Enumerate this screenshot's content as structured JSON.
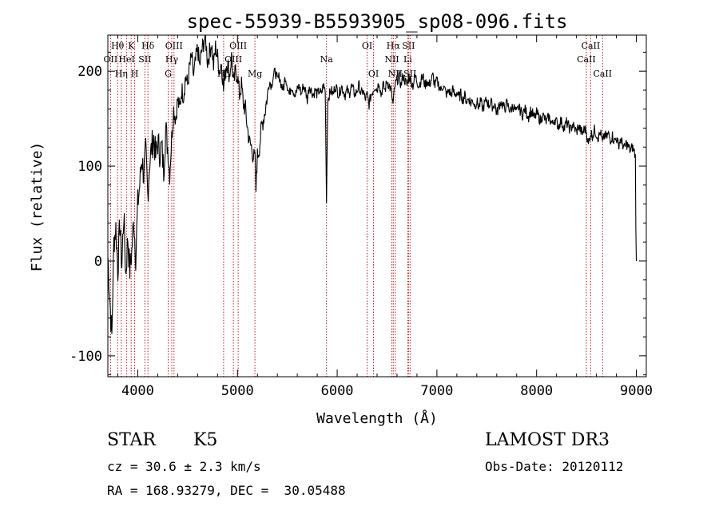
{
  "chart_data": {
    "type": "line",
    "title": "spec-55939-B5593905_sp08-096.fits",
    "xlabel": "Wavelength (Å)",
    "ylabel": "Flux (relative)",
    "xlim": [
      3700,
      9100
    ],
    "ylim": [
      -122,
      238
    ],
    "xticks": [
      4000,
      5000,
      6000,
      7000,
      8000,
      9000
    ],
    "yticks": [
      -100,
      0,
      100,
      200
    ],
    "line_color": "#000000",
    "marker_color": "#b22222",
    "spectrum": [
      [
        3700,
        5
      ],
      [
        3720,
        -40
      ],
      [
        3740,
        -80
      ],
      [
        3760,
        20
      ],
      [
        3780,
        35
      ],
      [
        3800,
        -10
      ],
      [
        3820,
        40
      ],
      [
        3840,
        -5
      ],
      [
        3860,
        50
      ],
      [
        3880,
        -15
      ],
      [
        3900,
        25
      ],
      [
        3920,
        -10
      ],
      [
        3940,
        10
      ],
      [
        3960,
        45
      ],
      [
        3980,
        5
      ],
      [
        4000,
        60
      ],
      [
        4020,
        80
      ],
      [
        4040,
        110
      ],
      [
        4060,
        90
      ],
      [
        4080,
        115
      ],
      [
        4100,
        70
      ],
      [
        4120,
        105
      ],
      [
        4140,
        120
      ],
      [
        4160,
        130
      ],
      [
        4180,
        110
      ],
      [
        4200,
        125
      ],
      [
        4220,
        115
      ],
      [
        4240,
        120
      ],
      [
        4260,
        95
      ],
      [
        4280,
        140
      ],
      [
        4300,
        120
      ],
      [
        4320,
        90
      ],
      [
        4340,
        130
      ],
      [
        4360,
        160
      ],
      [
        4380,
        150
      ],
      [
        4400,
        170
      ],
      [
        4420,
        160
      ],
      [
        4440,
        180
      ],
      [
        4460,
        175
      ],
      [
        4480,
        195
      ],
      [
        4500,
        185
      ],
      [
        4520,
        205
      ],
      [
        4540,
        215
      ],
      [
        4560,
        195
      ],
      [
        4580,
        210
      ],
      [
        4600,
        225
      ],
      [
        4620,
        205
      ],
      [
        4640,
        220
      ],
      [
        4660,
        230
      ],
      [
        4680,
        235
      ],
      [
        4700,
        210
      ],
      [
        4720,
        220
      ],
      [
        4740,
        230
      ],
      [
        4760,
        205
      ],
      [
        4780,
        225
      ],
      [
        4800,
        215
      ],
      [
        4820,
        200
      ],
      [
        4840,
        210
      ],
      [
        4860,
        180
      ],
      [
        4880,
        205
      ],
      [
        4900,
        210
      ],
      [
        4920,
        195
      ],
      [
        4940,
        215
      ],
      [
        4960,
        185
      ],
      [
        4980,
        200
      ],
      [
        5000,
        195
      ],
      [
        5020,
        175
      ],
      [
        5040,
        185
      ],
      [
        5060,
        165
      ],
      [
        5080,
        160
      ],
      [
        5100,
        140
      ],
      [
        5120,
        125
      ],
      [
        5140,
        120
      ],
      [
        5160,
        110
      ],
      [
        5180,
        105
      ],
      [
        5185,
        65
      ],
      [
        5190,
        95
      ],
      [
        5200,
        110
      ],
      [
        5220,
        120
      ],
      [
        5240,
        140
      ],
      [
        5260,
        150
      ],
      [
        5280,
        160
      ],
      [
        5300,
        175
      ],
      [
        5320,
        190
      ],
      [
        5340,
        185
      ],
      [
        5360,
        195
      ],
      [
        5380,
        200
      ],
      [
        5400,
        190
      ],
      [
        5420,
        195
      ],
      [
        5440,
        185
      ],
      [
        5460,
        180
      ],
      [
        5480,
        195
      ],
      [
        5500,
        185
      ],
      [
        5520,
        175
      ],
      [
        5540,
        185
      ],
      [
        5560,
        180
      ],
      [
        5580,
        175
      ],
      [
        5600,
        180
      ],
      [
        5620,
        185
      ],
      [
        5640,
        175
      ],
      [
        5660,
        185
      ],
      [
        5680,
        180
      ],
      [
        5700,
        170
      ],
      [
        5720,
        185
      ],
      [
        5740,
        180
      ],
      [
        5760,
        175
      ],
      [
        5780,
        180
      ],
      [
        5800,
        175
      ],
      [
        5820,
        180
      ],
      [
        5840,
        175
      ],
      [
        5860,
        185
      ],
      [
        5880,
        180
      ],
      [
        5888,
        110
      ],
      [
        5893,
        62
      ],
      [
        5898,
        105
      ],
      [
        5905,
        170
      ],
      [
        5920,
        175
      ],
      [
        5940,
        180
      ],
      [
        5960,
        175
      ],
      [
        5980,
        185
      ],
      [
        6000,
        180
      ],
      [
        6020,
        175
      ],
      [
        6040,
        185
      ],
      [
        6060,
        180
      ],
      [
        6080,
        175
      ],
      [
        6100,
        180
      ],
      [
        6120,
        175
      ],
      [
        6140,
        185
      ],
      [
        6160,
        180
      ],
      [
        6180,
        175
      ],
      [
        6200,
        180
      ],
      [
        6220,
        185
      ],
      [
        6240,
        175
      ],
      [
        6260,
        180
      ],
      [
        6280,
        170
      ],
      [
        6300,
        175
      ],
      [
        6320,
        165
      ],
      [
        6340,
        175
      ],
      [
        6360,
        180
      ],
      [
        6380,
        185
      ],
      [
        6400,
        180
      ],
      [
        6420,
        190
      ],
      [
        6440,
        175
      ],
      [
        6460,
        185
      ],
      [
        6480,
        180
      ],
      [
        6500,
        190
      ],
      [
        6520,
        185
      ],
      [
        6540,
        180
      ],
      [
        6560,
        165
      ],
      [
        6580,
        185
      ],
      [
        6600,
        190
      ],
      [
        6620,
        195
      ],
      [
        6640,
        185
      ],
      [
        6660,
        195
      ],
      [
        6680,
        190
      ],
      [
        6700,
        185
      ],
      [
        6720,
        195
      ],
      [
        6740,
        190
      ],
      [
        6760,
        185
      ],
      [
        6780,
        195
      ],
      [
        6800,
        190
      ],
      [
        6820,
        185
      ],
      [
        6840,
        190
      ],
      [
        6860,
        195
      ],
      [
        6880,
        185
      ],
      [
        6900,
        190
      ],
      [
        6920,
        185
      ],
      [
        6940,
        190
      ],
      [
        6960,
        195
      ],
      [
        6980,
        185
      ],
      [
        7000,
        190
      ],
      [
        7020,
        185
      ],
      [
        7040,
        180
      ],
      [
        7060,
        185
      ],
      [
        7080,
        180
      ],
      [
        7100,
        175
      ],
      [
        7120,
        180
      ],
      [
        7140,
        175
      ],
      [
        7160,
        180
      ],
      [
        7180,
        175
      ],
      [
        7200,
        178
      ],
      [
        7220,
        172
      ],
      [
        7240,
        176
      ],
      [
        7260,
        170
      ],
      [
        7280,
        174
      ],
      [
        7300,
        168
      ],
      [
        7320,
        172
      ],
      [
        7340,
        166
      ],
      [
        7360,
        170
      ],
      [
        7380,
        164
      ],
      [
        7400,
        168
      ],
      [
        7420,
        162
      ],
      [
        7440,
        168
      ],
      [
        7460,
        160
      ],
      [
        7480,
        166
      ],
      [
        7500,
        170
      ],
      [
        7520,
        164
      ],
      [
        7540,
        168
      ],
      [
        7560,
        162
      ],
      [
        7580,
        166
      ],
      [
        7600,
        155
      ],
      [
        7620,
        162
      ],
      [
        7640,
        168
      ],
      [
        7660,
        164
      ],
      [
        7680,
        160
      ],
      [
        7700,
        166
      ],
      [
        7720,
        162
      ],
      [
        7740,
        158
      ],
      [
        7760,
        164
      ],
      [
        7780,
        160
      ],
      [
        7800,
        156
      ],
      [
        7820,
        162
      ],
      [
        7840,
        158
      ],
      [
        7860,
        154
      ],
      [
        7880,
        160
      ],
      [
        7900,
        156
      ],
      [
        7920,
        152
      ],
      [
        7940,
        158
      ],
      [
        7960,
        155
      ],
      [
        7980,
        150
      ],
      [
        8000,
        156
      ],
      [
        8020,
        152
      ],
      [
        8040,
        148
      ],
      [
        8060,
        154
      ],
      [
        8080,
        150
      ],
      [
        8100,
        146
      ],
      [
        8120,
        152
      ],
      [
        8140,
        148
      ],
      [
        8160,
        144
      ],
      [
        8180,
        150
      ],
      [
        8200,
        146
      ],
      [
        8220,
        142
      ],
      [
        8240,
        148
      ],
      [
        8260,
        144
      ],
      [
        8280,
        140
      ],
      [
        8300,
        146
      ],
      [
        8320,
        142
      ],
      [
        8340,
        138
      ],
      [
        8360,
        144
      ],
      [
        8380,
        140
      ],
      [
        8400,
        136
      ],
      [
        8420,
        142
      ],
      [
        8440,
        138
      ],
      [
        8460,
        134
      ],
      [
        8480,
        140
      ],
      [
        8500,
        136
      ],
      [
        8520,
        122
      ],
      [
        8540,
        135
      ],
      [
        8560,
        132
      ],
      [
        8580,
        138
      ],
      [
        8600,
        134
      ],
      [
        8620,
        130
      ],
      [
        8640,
        136
      ],
      [
        8660,
        124
      ],
      [
        8680,
        133
      ],
      [
        8700,
        130
      ],
      [
        8720,
        134
      ],
      [
        8740,
        128
      ],
      [
        8760,
        132
      ],
      [
        8780,
        126
      ],
      [
        8800,
        130
      ],
      [
        8820,
        122
      ],
      [
        8840,
        128
      ],
      [
        8860,
        124
      ],
      [
        8880,
        118
      ],
      [
        8900,
        124
      ],
      [
        8920,
        120
      ],
      [
        8940,
        116
      ],
      [
        8960,
        120
      ],
      [
        8980,
        115
      ],
      [
        8990,
        110
      ],
      [
        8995,
        40
      ],
      [
        9000,
        0
      ]
    ],
    "line_markers": [
      {
        "label": "Hθ",
        "wave": 3798,
        "row": 0
      },
      {
        "label": "K",
        "wave": 3934,
        "row": 0
      },
      {
        "label": "Hδ",
        "wave": 4102,
        "row": 0
      },
      {
        "label": "OII",
        "wave": 3727,
        "row": 1
      },
      {
        "label": "HeI",
        "wave": 3889,
        "row": 1
      },
      {
        "label": "SII",
        "wave": 4072,
        "row": 1
      },
      {
        "label": "Hη",
        "wave": 3835,
        "row": 2
      },
      {
        "label": "H",
        "wave": 3968,
        "row": 2
      },
      {
        "label": "OIII",
        "wave": 4363,
        "row": 0
      },
      {
        "label": "Hγ",
        "wave": 4341,
        "row": 1
      },
      {
        "label": "G",
        "wave": 4305,
        "row": 2
      },
      {
        "label": "OIII",
        "wave": 5007,
        "row": 0
      },
      {
        "label": "OIII",
        "wave": 4959,
        "row": 1
      },
      {
        "label": "Hβ",
        "wave": 4861,
        "row": 2
      },
      {
        "label": "Mg",
        "wave": 5175,
        "row": 2
      },
      {
        "label": "Na",
        "wave": 5893,
        "row": 1
      },
      {
        "label": "OI",
        "wave": 6300,
        "row": 0
      },
      {
        "label": "OI",
        "wave": 6364,
        "row": 2
      },
      {
        "label": "Hα",
        "wave": 6563,
        "row": 0
      },
      {
        "label": "SII",
        "wave": 6716,
        "row": 0
      },
      {
        "label": "NII",
        "wave": 6548,
        "row": 1
      },
      {
        "label": "Li",
        "wave": 6708,
        "row": 1
      },
      {
        "label": "NII",
        "wave": 6583,
        "row": 2
      },
      {
        "label": "SII",
        "wave": 6731,
        "row": 2
      },
      {
        "label": "CaII",
        "wave": 8542,
        "row": 0
      },
      {
        "label": "CaII",
        "wave": 8498,
        "row": 1
      },
      {
        "label": "CaII",
        "wave": 8662,
        "row": 2
      }
    ]
  },
  "info": {
    "object_class": "STAR",
    "subclass": "K5",
    "redshift": "cz = 30.6 ± 2.3 km/s",
    "coords": "RA = 168.93279, DEC =  30.05488",
    "survey": "LAMOST DR3",
    "obs_date": "Obs-Date: 20120112"
  }
}
